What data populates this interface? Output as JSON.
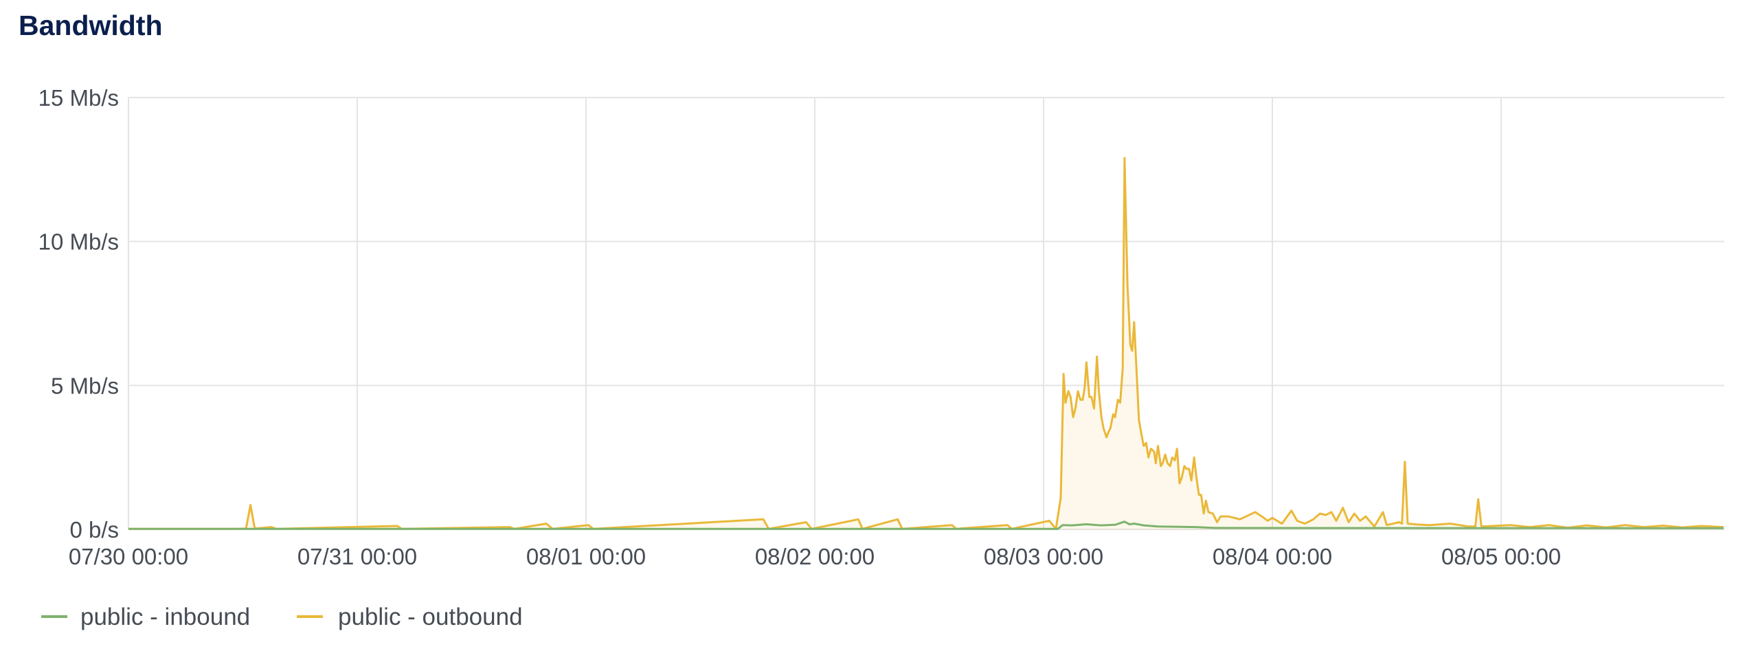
{
  "chart_data": {
    "type": "line",
    "title": "Bandwidth",
    "xlabel": "",
    "ylabel": "",
    "ylim": [
      0,
      15
    ],
    "xlim": [
      "07/30 00:00",
      "08/05 23:20"
    ],
    "yticks": [
      {
        "value": 0,
        "label": "0 b/s"
      },
      {
        "value": 5,
        "label": "5 Mb/s"
      },
      {
        "value": 10,
        "label": "10 Mb/s"
      },
      {
        "value": 15,
        "label": "15 Mb/s"
      }
    ],
    "xticks": [
      "07/30 00:00",
      "07/31 00:00",
      "08/01 00:00",
      "08/02 00:00",
      "08/03 00:00",
      "08/04 00:00",
      "08/05 00:00"
    ],
    "grid": true,
    "legend_position": "bottom-left",
    "series": [
      {
        "name": "public - inbound",
        "color": "#7eb26d",
        "fill": false,
        "points": [
          [
            "07/30 00:00",
            0.02
          ],
          [
            "08/03 01:30",
            0.02
          ],
          [
            "08/03 02:00",
            0.15
          ],
          [
            "08/03 03:00",
            0.14
          ],
          [
            "08/03 04:30",
            0.18
          ],
          [
            "08/03 06:00",
            0.14
          ],
          [
            "08/03 07:30",
            0.16
          ],
          [
            "08/03 08:30",
            0.27
          ],
          [
            "08/03 09:00",
            0.18
          ],
          [
            "08/03 09:30",
            0.2
          ],
          [
            "08/03 10:30",
            0.14
          ],
          [
            "08/03 12:00",
            0.1
          ],
          [
            "08/03 16:00",
            0.08
          ],
          [
            "08/03 18:00",
            0.05
          ],
          [
            "08/05 23:20",
            0.04
          ]
        ]
      },
      {
        "name": "public - outbound",
        "color": "#eab839",
        "fill": true,
        "points": [
          [
            "07/30 00:00",
            0.02
          ],
          [
            "07/30 11:00",
            0.02
          ],
          [
            "07/30 12:20",
            0.03
          ],
          [
            "07/30 12:48",
            0.85
          ],
          [
            "07/30 13:15",
            0.03
          ],
          [
            "07/30 15:00",
            0.08
          ],
          [
            "07/30 15:30",
            0.02
          ],
          [
            "07/31 04:12",
            0.12
          ],
          [
            "07/31 04:40",
            0.02
          ],
          [
            "07/31 16:00",
            0.08
          ],
          [
            "07/31 16:30",
            0.02
          ],
          [
            "07/31 19:50",
            0.2
          ],
          [
            "07/31 20:30",
            0.02
          ],
          [
            "08/01 00:15",
            0.15
          ],
          [
            "08/01 00:45",
            0.02
          ],
          [
            "08/01 18:36",
            0.35
          ],
          [
            "08/01 19:10",
            0.02
          ],
          [
            "08/01 23:05",
            0.25
          ],
          [
            "08/01 23:40",
            0.02
          ],
          [
            "08/02 04:34",
            0.35
          ],
          [
            "08/02 05:00",
            0.02
          ],
          [
            "08/02 08:42",
            0.35
          ],
          [
            "08/02 09:10",
            0.02
          ],
          [
            "08/02 14:24",
            0.15
          ],
          [
            "08/02 14:50",
            0.02
          ],
          [
            "08/02 20:12",
            0.15
          ],
          [
            "08/02 20:40",
            0.02
          ],
          [
            "08/03 00:36",
            0.3
          ],
          [
            "08/03 01:18",
            0.02
          ],
          [
            "08/03 01:48",
            1.1
          ],
          [
            "08/03 02:06",
            5.4
          ],
          [
            "08/03 02:18",
            4.4
          ],
          [
            "08/03 02:36",
            4.8
          ],
          [
            "08/03 02:50",
            4.6
          ],
          [
            "08/03 03:06",
            3.9
          ],
          [
            "08/03 03:20",
            4.2
          ],
          [
            "08/03 03:36",
            4.8
          ],
          [
            "08/03 03:52",
            4.5
          ],
          [
            "08/03 04:06",
            4.5
          ],
          [
            "08/03 04:18",
            4.9
          ],
          [
            "08/03 04:30",
            5.8
          ],
          [
            "08/03 04:48",
            4.6
          ],
          [
            "08/03 05:02",
            4.6
          ],
          [
            "08/03 05:18",
            4.2
          ],
          [
            "08/03 05:36",
            6.0
          ],
          [
            "08/03 05:48",
            4.8
          ],
          [
            "08/03 06:04",
            3.9
          ],
          [
            "08/03 06:18",
            3.5
          ],
          [
            "08/03 06:36",
            3.2
          ],
          [
            "08/03 06:50",
            3.4
          ],
          [
            "08/03 07:00",
            3.5
          ],
          [
            "08/03 07:18",
            4.0
          ],
          [
            "08/03 07:30",
            3.9
          ],
          [
            "08/03 07:48",
            4.5
          ],
          [
            "08/03 08:02",
            4.4
          ],
          [
            "08/03 08:18",
            5.6
          ],
          [
            "08/03 08:30",
            12.9
          ],
          [
            "08/03 08:48",
            8.5
          ],
          [
            "08/03 09:06",
            6.4
          ],
          [
            "08/03 09:18",
            6.2
          ],
          [
            "08/03 09:30",
            7.2
          ],
          [
            "08/03 09:48",
            5.2
          ],
          [
            "08/03 10:00",
            3.8
          ],
          [
            "08/03 10:16",
            3.3
          ],
          [
            "08/03 10:30",
            2.9
          ],
          [
            "08/03 10:46",
            3.0
          ],
          [
            "08/03 11:00",
            2.5
          ],
          [
            "08/03 11:16",
            2.8
          ],
          [
            "08/03 11:36",
            2.7
          ],
          [
            "08/03 11:46",
            2.3
          ],
          [
            "08/03 12:00",
            2.9
          ],
          [
            "08/03 12:18",
            2.2
          ],
          [
            "08/03 12:30",
            2.3
          ],
          [
            "08/03 12:46",
            2.6
          ],
          [
            "08/03 13:00",
            2.3
          ],
          [
            "08/03 13:16",
            2.2
          ],
          [
            "08/03 13:30",
            2.5
          ],
          [
            "08/03 13:46",
            2.4
          ],
          [
            "08/03 14:00",
            2.8
          ],
          [
            "08/03 14:16",
            1.6
          ],
          [
            "08/03 14:30",
            1.8
          ],
          [
            "08/03 14:46",
            2.2
          ],
          [
            "08/03 15:00",
            2.1
          ],
          [
            "08/03 15:16",
            2.1
          ],
          [
            "08/03 15:30",
            1.7
          ],
          [
            "08/03 15:48",
            2.5
          ],
          [
            "08/03 16:02",
            1.8
          ],
          [
            "08/03 16:18",
            1.2
          ],
          [
            "08/03 16:32",
            1.2
          ],
          [
            "08/03 16:48",
            0.55
          ],
          [
            "08/03 17:02",
            1.0
          ],
          [
            "08/03 17:18",
            0.6
          ],
          [
            "08/03 17:46",
            0.55
          ],
          [
            "08/03 18:12",
            0.25
          ],
          [
            "08/03 18:34",
            0.45
          ],
          [
            "08/03 19:24",
            0.45
          ],
          [
            "08/03 20:36",
            0.35
          ],
          [
            "08/03 22:12",
            0.6
          ],
          [
            "08/03 22:54",
            0.45
          ],
          [
            "08/03 23:30",
            0.3
          ],
          [
            "08/04 00:00",
            0.4
          ],
          [
            "08/04 01:00",
            0.2
          ],
          [
            "08/04 02:00",
            0.65
          ],
          [
            "08/04 02:36",
            0.3
          ],
          [
            "08/04 03:24",
            0.2
          ],
          [
            "08/04 04:18",
            0.35
          ],
          [
            "08/04 05:00",
            0.55
          ],
          [
            "08/04 05:36",
            0.5
          ],
          [
            "08/04 06:12",
            0.6
          ],
          [
            "08/04 06:42",
            0.3
          ],
          [
            "08/04 07:24",
            0.75
          ],
          [
            "08/04 08:00",
            0.25
          ],
          [
            "08/04 08:36",
            0.55
          ],
          [
            "08/04 09:12",
            0.3
          ],
          [
            "08/04 09:48",
            0.45
          ],
          [
            "08/04 10:42",
            0.1
          ],
          [
            "08/04 11:36",
            0.6
          ],
          [
            "08/04 12:00",
            0.15
          ],
          [
            "08/04 13:18",
            0.25
          ],
          [
            "08/04 13:36",
            0.2
          ],
          [
            "08/04 13:54",
            2.35
          ],
          [
            "08/04 14:12",
            0.2
          ],
          [
            "08/04 15:12",
            0.17
          ],
          [
            "08/04 16:30",
            0.15
          ],
          [
            "08/04 18:42",
            0.2
          ],
          [
            "08/04 20:36",
            0.1
          ],
          [
            "08/04 21:18",
            0.1
          ],
          [
            "08/04 21:36",
            1.05
          ],
          [
            "08/04 21:56",
            0.1
          ],
          [
            "08/05 01:00",
            0.15
          ],
          [
            "08/05 03:00",
            0.08
          ],
          [
            "08/05 05:00",
            0.15
          ],
          [
            "08/05 07:00",
            0.06
          ],
          [
            "08/05 09:00",
            0.14
          ],
          [
            "08/05 11:00",
            0.07
          ],
          [
            "08/05 13:00",
            0.15
          ],
          [
            "08/05 15:00",
            0.08
          ],
          [
            "08/05 17:00",
            0.13
          ],
          [
            "08/05 19:00",
            0.07
          ],
          [
            "08/05 21:00",
            0.12
          ],
          [
            "08/05 23:20",
            0.08
          ]
        ]
      }
    ]
  }
}
